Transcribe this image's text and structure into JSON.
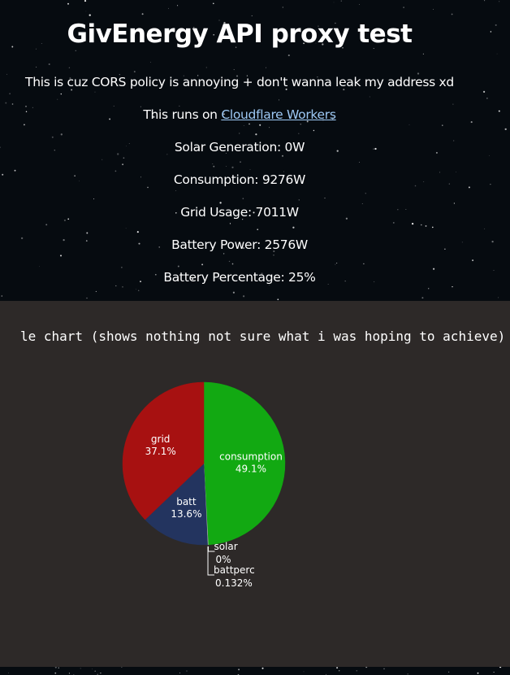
{
  "page": {
    "title": "GivEnergy API proxy test",
    "note": "This is cuz CORS policy is annoying + don't wanna leak my address xd",
    "runs_on_prefix": "This runs on ",
    "runs_on_link": "Cloudflare Workers",
    "solar_generation": "Solar Generation: 0W",
    "consumption": "Consumption: 9276W",
    "grid_usage": "Grid Usage: 7011W",
    "battery_power": "Battery Power: 2576W",
    "battery_percentage": "Battery Percentage: 25%"
  },
  "colors": {
    "background": "#060b10",
    "panel": "#2d2928",
    "link": "#9ec9f5",
    "consumption": "#12a912",
    "grid": "#a71111",
    "batt": "#23345f",
    "solar": "#e0e0e0",
    "battperc": "#b0b0b0"
  },
  "chart_data": {
    "type": "pie",
    "title": "le chart (shows nothing not sure what i was hoping to achieve)",
    "slices": [
      {
        "label": "consumption",
        "percent_label": "49.1%",
        "value": 49.1,
        "color": "#12a912"
      },
      {
        "label": "solar",
        "percent_label": "0%",
        "value": 0,
        "color": "#e0e0e0"
      },
      {
        "label": "battperc",
        "percent_label": "0.132%",
        "value": 0.132,
        "color": "#b0b0b0"
      },
      {
        "label": "batt",
        "percent_label": "13.6%",
        "value": 13.6,
        "color": "#23345f"
      },
      {
        "label": "grid",
        "percent_label": "37.1%",
        "value": 37.1,
        "color": "#a71111"
      }
    ]
  }
}
